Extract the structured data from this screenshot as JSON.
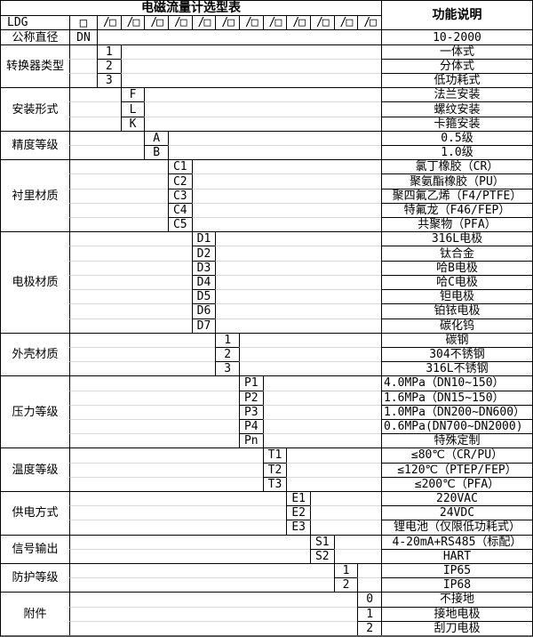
{
  "title": "电磁流量计选型表",
  "function_header": "功能说明",
  "model_row": {
    "prefix": "LDG",
    "first_box": "□",
    "slot": "/□",
    "slot_count": 12
  },
  "dn_row": {
    "label": "公称直径",
    "code": "DN",
    "desc": "10-2000"
  },
  "sections": [
    {
      "label": "转换器类型",
      "col": 1,
      "items": [
        {
          "code": "1",
          "desc": "一体式"
        },
        {
          "code": "2",
          "desc": "分体式"
        },
        {
          "code": "3",
          "desc": "低功耗式"
        }
      ]
    },
    {
      "label": "安装形式",
      "col": 2,
      "items": [
        {
          "code": "F",
          "desc": "法兰安装"
        },
        {
          "code": "L",
          "desc": "螺纹安装"
        },
        {
          "code": "K",
          "desc": "卡箍安装"
        }
      ]
    },
    {
      "label": "精度等级",
      "col": 3,
      "items": [
        {
          "code": "A",
          "desc": "0.5级"
        },
        {
          "code": "B",
          "desc": "1.0级"
        }
      ]
    },
    {
      "label": "衬里材质",
      "col": 4,
      "items": [
        {
          "code": "C1",
          "desc": "氯丁橡胶（CR）"
        },
        {
          "code": "C2",
          "desc": "聚氨酯橡胶（PU）"
        },
        {
          "code": "C3",
          "desc": "聚四氟乙烯（F4/PTFE）"
        },
        {
          "code": "C4",
          "desc": "特氟龙（F46/FEP）"
        },
        {
          "code": "C5",
          "desc": "共聚物（PFA）"
        }
      ]
    },
    {
      "label": "电极材质",
      "col": 5,
      "items": [
        {
          "code": "D1",
          "desc": "316L电极"
        },
        {
          "code": "D2",
          "desc": "钛合金"
        },
        {
          "code": "D3",
          "desc": "哈B电极"
        },
        {
          "code": "D4",
          "desc": "哈C电极"
        },
        {
          "code": "D5",
          "desc": "钽电极"
        },
        {
          "code": "D6",
          "desc": "铂铱电极"
        },
        {
          "code": "D7",
          "desc": "碳化钨"
        }
      ]
    },
    {
      "label": "外壳材质",
      "col": 6,
      "items": [
        {
          "code": "1",
          "desc": "碳钢"
        },
        {
          "code": "2",
          "desc": "304不锈钢"
        },
        {
          "code": "3",
          "desc": "316L不锈钢"
        }
      ]
    },
    {
      "label": "压力等级",
      "col": 7,
      "items": [
        {
          "code": "P1",
          "desc": "4.0MPa（DN10~150）",
          "align": "left"
        },
        {
          "code": "P2",
          "desc": "1.6MPa（DN15~150）",
          "align": "left"
        },
        {
          "code": "P3",
          "desc": "1.0MPa（DN200~DN600）",
          "align": "left"
        },
        {
          "code": "P4",
          "desc": "0.6MPa(DN700~DN2000)",
          "align": "left"
        },
        {
          "code": "Pn",
          "desc": "特殊定制"
        }
      ]
    },
    {
      "label": "温度等级",
      "col": 8,
      "items": [
        {
          "code": "T1",
          "desc": "≤80℃（CR/PU）"
        },
        {
          "code": "T2",
          "desc": "≤120℃（PTEP/FEP）"
        },
        {
          "code": "T3",
          "desc": "≤200℃（PFA）"
        }
      ]
    },
    {
      "label": "供电方式",
      "col": 9,
      "items": [
        {
          "code": "E1",
          "desc": "220VAC"
        },
        {
          "code": "E2",
          "desc": "24VDC"
        },
        {
          "code": "E3",
          "desc": "锂电池（仅限低功耗式）"
        }
      ]
    },
    {
      "label": "信号输出",
      "col": 10,
      "items": [
        {
          "code": "S1",
          "desc": "4-20mA+RS485（标配）"
        },
        {
          "code": "S2",
          "desc": "HART"
        }
      ]
    },
    {
      "label": "防护等级",
      "col": 11,
      "items": [
        {
          "code": "1",
          "desc": "IP65"
        },
        {
          "code": "2",
          "desc": "IP68"
        }
      ]
    },
    {
      "label": "附件",
      "col": 12,
      "items": [
        {
          "code": "0",
          "desc": "不接地"
        },
        {
          "code": "1",
          "desc": "接地电极"
        },
        {
          "code": "2",
          "desc": "刮刀电极"
        }
      ]
    }
  ],
  "colors": {
    "border": "#000000",
    "faint_gridline": "#d9d9d9",
    "background": "#ffffff",
    "text": "#000000"
  }
}
